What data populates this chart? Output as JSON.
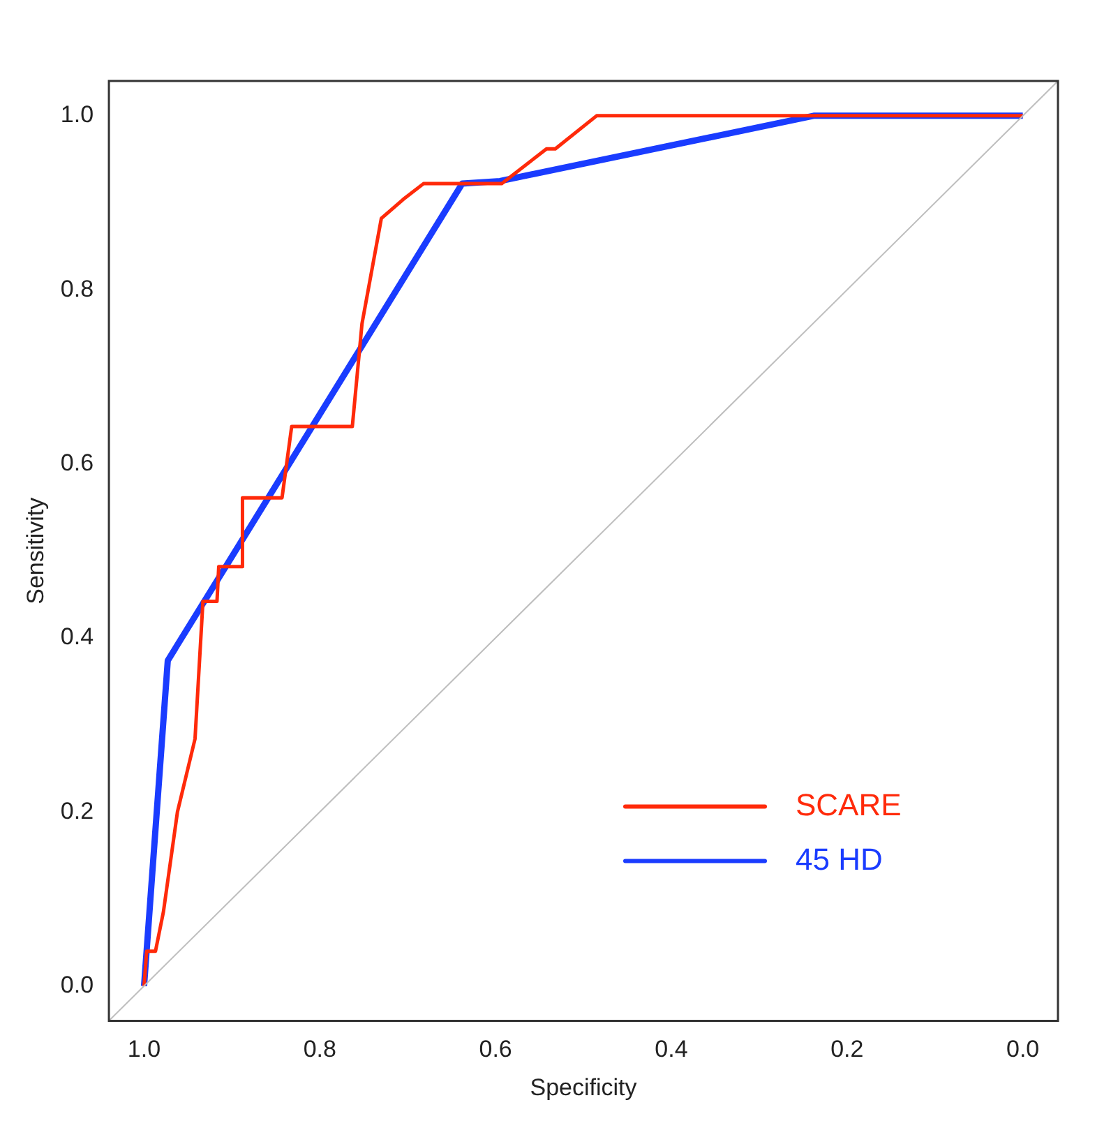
{
  "chart_data": {
    "type": "line",
    "xlabel": "Specificity",
    "ylabel": "Sensitivity",
    "xlim": [
      1.04,
      -0.04
    ],
    "ylim": [
      -0.04,
      1.04
    ],
    "xticks": [
      {
        "value": 1,
        "label": "1.0"
      },
      {
        "value": 0.8,
        "label": "0.8"
      },
      {
        "value": 0.6,
        "label": "0.6"
      },
      {
        "value": 0.4,
        "label": "0.4"
      },
      {
        "value": 0.2,
        "label": "0.2"
      },
      {
        "value": 0,
        "label": "0.0"
      }
    ],
    "yticks": [
      {
        "value": 0,
        "label": "0.0"
      },
      {
        "value": 0.2,
        "label": "0.2"
      },
      {
        "value": 0.4,
        "label": "0.4"
      },
      {
        "value": 0.6,
        "label": "0.6"
      },
      {
        "value": 0.8,
        "label": "0.8"
      },
      {
        "value": 1,
        "label": "1.0"
      }
    ],
    "grid": false,
    "legend": "bottom right",
    "marker": "none",
    "line_style": "solid",
    "series": [
      {
        "type": "line",
        "color": "#bebebe",
        "x": [
          1.04,
          -0.04
        ],
        "values": [
          -0.04,
          1.04
        ]
      },
      {
        "name": "SCARE",
        "color": "#ff2a0a",
        "x": [
          1.0,
          0.997,
          0.987,
          0.978,
          0.962,
          0.942,
          0.933,
          0.917,
          0.915,
          0.888,
          0.888,
          0.843,
          0.832,
          0.763,
          0.752,
          0.73,
          0.705,
          0.682,
          0.593,
          0.542,
          0.532,
          0.485,
          0.0
        ],
        "values": [
          0,
          0.04,
          0.04,
          0.085,
          0.2,
          0.284,
          0.442,
          0.442,
          0.482,
          0.482,
          0.561,
          0.561,
          0.643,
          0.643,
          0.761,
          0.882,
          0.904,
          0.922,
          0.922,
          0.962,
          0.962,
          1.0,
          1.0
        ]
      },
      {
        "name": "45 HD",
        "color": "#1a3cff",
        "x": [
          1.0,
          0.973,
          0.638,
          0.595,
          0.238,
          0.0
        ],
        "values": [
          0,
          0.374,
          0.922,
          0.925,
          1.0,
          1.0
        ]
      }
    ]
  }
}
